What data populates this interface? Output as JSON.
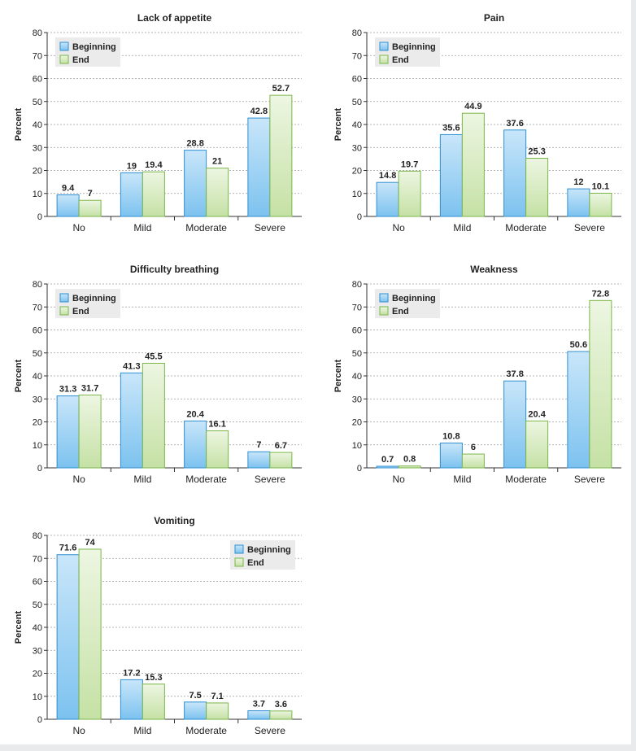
{
  "chart_data": [
    {
      "type": "bar",
      "title": "Lack of appetite",
      "ylabel": "Percent",
      "xlabel": "",
      "ylim": [
        0,
        80
      ],
      "yticks": [
        0,
        10,
        20,
        30,
        40,
        50,
        60,
        70,
        80
      ],
      "grid": true,
      "legend_position": "top-left",
      "categories": [
        "No",
        "Mild",
        "Moderate",
        "Severe"
      ],
      "series": [
        {
          "name": "Beginning",
          "values": [
            9.4,
            19,
            28.8,
            42.8
          ]
        },
        {
          "name": "End",
          "values": [
            7,
            19.4,
            21,
            52.7
          ]
        }
      ]
    },
    {
      "type": "bar",
      "title": "Pain",
      "ylabel": "Percent",
      "xlabel": "",
      "ylim": [
        0,
        80
      ],
      "yticks": [
        0,
        10,
        20,
        30,
        40,
        50,
        60,
        70,
        80
      ],
      "grid": true,
      "legend_position": "top-left",
      "categories": [
        "No",
        "Mild",
        "Moderate",
        "Severe"
      ],
      "series": [
        {
          "name": "Beginning",
          "values": [
            14.8,
            35.6,
            37.6,
            12
          ]
        },
        {
          "name": "End",
          "values": [
            19.7,
            44.9,
            25.3,
            10.1
          ]
        }
      ]
    },
    {
      "type": "bar",
      "title": "Difficulty breathing",
      "ylabel": "Percent",
      "xlabel": "",
      "ylim": [
        0,
        80
      ],
      "yticks": [
        0,
        10,
        20,
        30,
        40,
        50,
        60,
        70,
        80
      ],
      "grid": true,
      "legend_position": "top-left",
      "categories": [
        "No",
        "Mild",
        "Moderate",
        "Severe"
      ],
      "series": [
        {
          "name": "Beginning",
          "values": [
            31.3,
            41.3,
            20.4,
            7
          ]
        },
        {
          "name": "End",
          "values": [
            31.7,
            45.5,
            16.1,
            6.7
          ]
        }
      ]
    },
    {
      "type": "bar",
      "title": "Weakness",
      "ylabel": "Percent",
      "xlabel": "",
      "ylim": [
        0,
        80
      ],
      "yticks": [
        0,
        10,
        20,
        30,
        40,
        50,
        60,
        70,
        80
      ],
      "grid": true,
      "legend_position": "top-left",
      "categories": [
        "No",
        "Mild",
        "Moderate",
        "Severe"
      ],
      "series": [
        {
          "name": "Beginning",
          "values": [
            0.7,
            10.8,
            37.8,
            50.6
          ]
        },
        {
          "name": "End",
          "values": [
            0.8,
            6,
            20.4,
            72.8
          ]
        }
      ]
    },
    {
      "type": "bar",
      "title": "Vomiting",
      "ylabel": "Percent",
      "xlabel": "",
      "ylim": [
        0,
        80
      ],
      "yticks": [
        0,
        10,
        20,
        30,
        40,
        50,
        60,
        70,
        80
      ],
      "grid": true,
      "legend_position": "top-right",
      "categories": [
        "No",
        "Mild",
        "Moderate",
        "Severe"
      ],
      "series": [
        {
          "name": "Beginning",
          "values": [
            71.6,
            17.2,
            7.5,
            3.7
          ]
        },
        {
          "name": "End",
          "values": [
            74,
            15.3,
            7.1,
            3.6
          ]
        }
      ]
    }
  ],
  "colors": {
    "beginning_fill_top": "#c9e6fa",
    "beginning_fill_bottom": "#7cc2ef",
    "beginning_stroke": "#2f8fd2",
    "end_fill_top": "#edf6e2",
    "end_fill_bottom": "#c5e1a5",
    "end_stroke": "#7ab648",
    "legend_background": "#ebebeb"
  }
}
